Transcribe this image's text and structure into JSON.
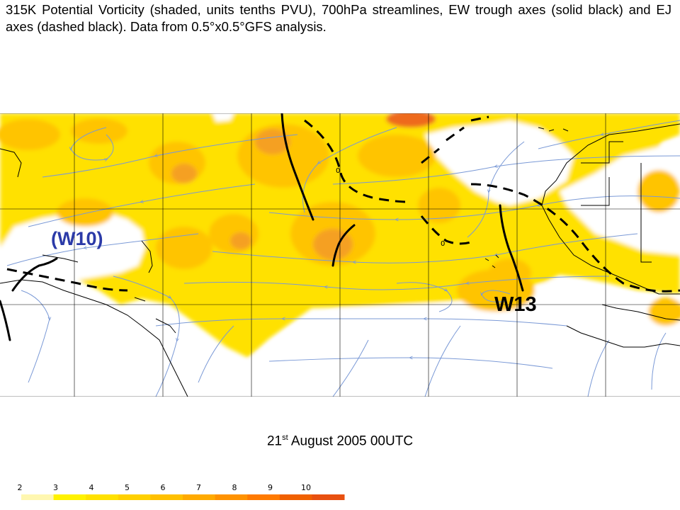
{
  "caption": "315K Potential Vorticity (shaded, units tenths PVU), 700hPa streamlines, EW trough axes (solid black) and EJ axes (dashed black). Data from 0.5°x0.5°GFS analysis.",
  "wave_labels": {
    "w10": "(W10)",
    "w13": "W13"
  },
  "contour_labels": [
    "0",
    "0"
  ],
  "date": {
    "day": "21",
    "suffix": "st",
    "rest": " August 2005 00UTC"
  },
  "legend": {
    "ticks": [
      "2",
      "3",
      "4",
      "5",
      "6",
      "7",
      "8",
      "9",
      "10"
    ],
    "colors": [
      "#fff7b0",
      "#fff200",
      "#ffe100",
      "#ffd000",
      "#ffc000",
      "#ffaa00",
      "#ff9200",
      "#ff7a00",
      "#f06000",
      "#e85010"
    ]
  },
  "colors": {
    "pv_light": "#ffe100",
    "pv_mid": "#ffc400",
    "pv_dark": "#f5a020",
    "pv_darkest": "#ee6a1e",
    "streamline": "#7a99d6",
    "coast": "#000000",
    "grid": "#000000",
    "w10_label": "#2b3aa8"
  }
}
